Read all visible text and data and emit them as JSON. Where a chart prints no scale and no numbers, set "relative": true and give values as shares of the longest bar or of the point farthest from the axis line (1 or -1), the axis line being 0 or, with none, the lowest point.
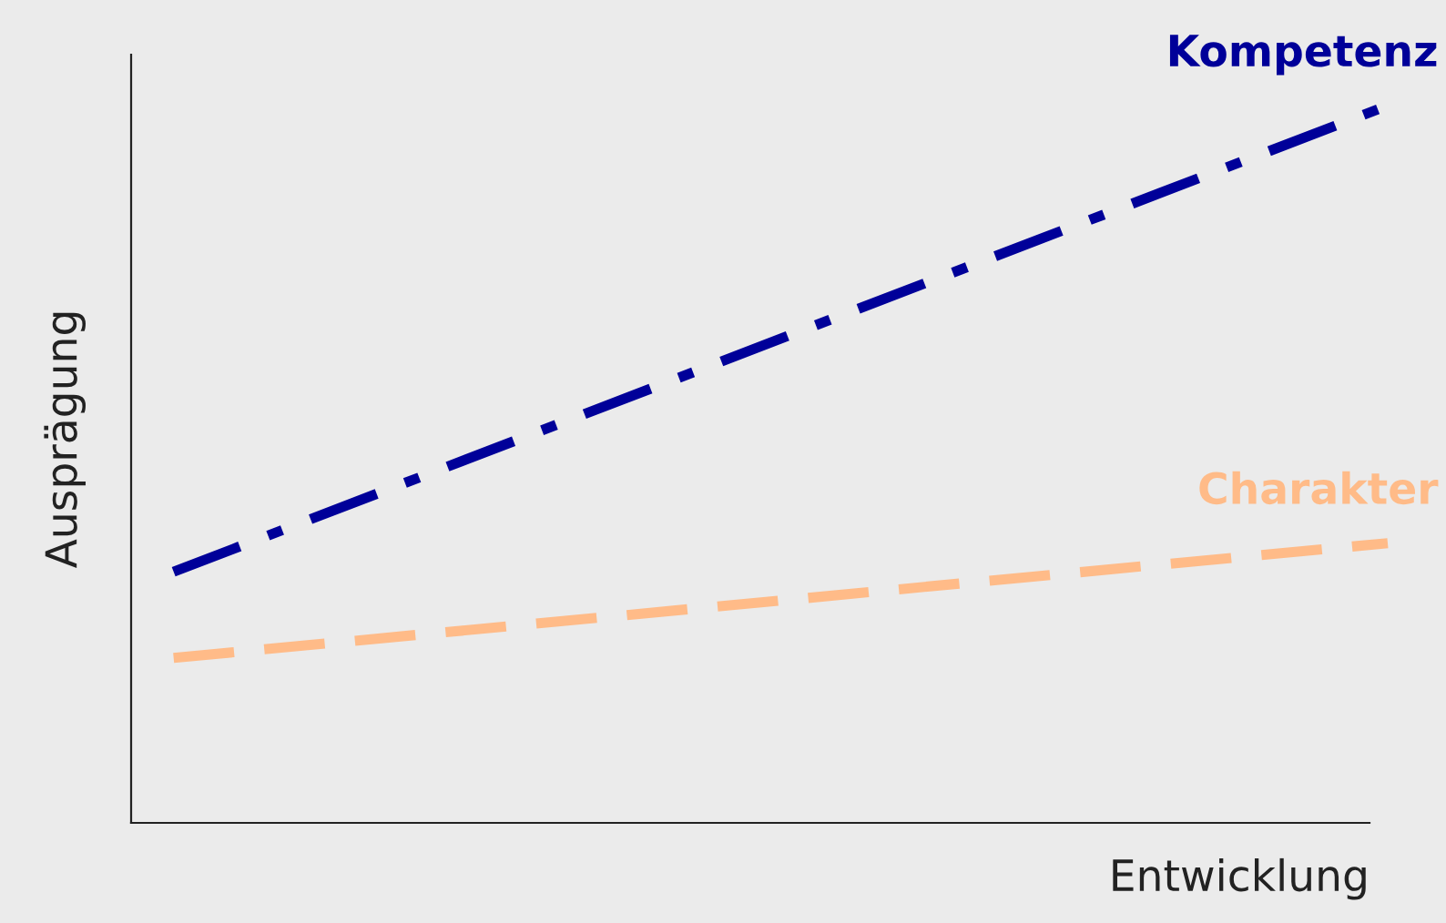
{
  "chart_data": {
    "type": "line",
    "relative": true,
    "xlabel": "Entwicklung",
    "ylabel": "Ausprägung",
    "categories": [
      null,
      null
    ],
    "series": [
      {
        "name": "Kompetenz",
        "color": "#000099",
        "values": [
          0.35,
          1
        ],
        "line_style": "dashdot"
      },
      {
        "name": "Charakter",
        "color": "#ffbb88",
        "values": [
          0.23,
          0.39
        ],
        "line_style": "dashed"
      }
    ],
    "legend": false,
    "tick_labels": false
  }
}
